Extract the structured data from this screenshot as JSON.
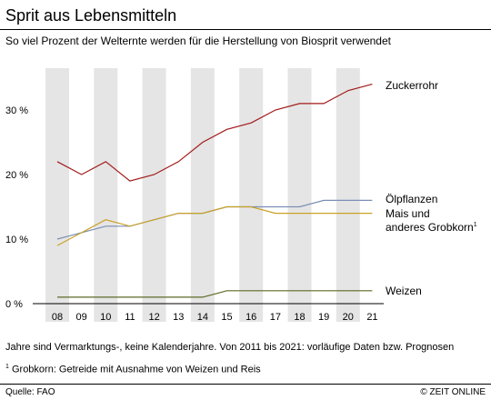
{
  "header": {
    "title": "Sprit aus Lebensmitteln",
    "subtitle": "So viel Prozent der Welternte werden für die Herstellung von Biosprit verwendet"
  },
  "notes": {
    "line1": "Jahre sind Vermarktungs-, keine Kalenderjahre. Von 2011 bis 2021: vorläufige Daten bzw. Prognosen",
    "marker": "1",
    "line2": "Grobkorn: Getreide mit Ausnahme von Weizen und Reis"
  },
  "footer": {
    "source": "Quelle: FAO",
    "credit": "© ZEIT ONLINE"
  },
  "chart_data": {
    "type": "line",
    "categories": [
      "08",
      "09",
      "10",
      "11",
      "12",
      "13",
      "14",
      "15",
      "16",
      "17",
      "18",
      "19",
      "20",
      "21"
    ],
    "ylim": [
      0,
      37
    ],
    "yticks": [
      {
        "value": 0,
        "label": "0 %"
      },
      {
        "value": 10,
        "label": "10 %"
      },
      {
        "value": 20,
        "label": "20 %"
      },
      {
        "value": 30,
        "label": "30 %"
      }
    ],
    "grid": "alternating vertical bands",
    "legend": "direct labels at right",
    "series": [
      {
        "name": "Zuckerrohr",
        "label_lines": [
          "Zuckerrohr"
        ],
        "color": "#a31a1a",
        "values": [
          22,
          20,
          22,
          19,
          20,
          22,
          25,
          27,
          28,
          30,
          31,
          31,
          33,
          34
        ]
      },
      {
        "name": "Ölpflanzen",
        "label_lines": [
          "Ölpflanzen"
        ],
        "color": "#7b8fb5",
        "values": [
          10,
          11,
          12,
          12,
          13,
          14,
          14,
          15,
          15,
          15,
          15,
          16,
          16,
          16
        ]
      },
      {
        "name": "Mais und anderes Grobkorn",
        "label_lines": [
          "Mais und",
          "anderes Grobkorn"
        ],
        "marker": "1",
        "color": "#c9a227",
        "values": [
          9,
          11,
          13,
          12,
          13,
          14,
          14,
          15,
          15,
          14,
          14,
          14,
          14,
          14
        ]
      },
      {
        "name": "Weizen",
        "label_lines": [
          "Weizen"
        ],
        "color": "#5c6b26",
        "values": [
          1,
          1,
          1,
          1,
          1,
          1,
          1,
          2,
          2,
          2,
          2,
          2,
          2,
          2
        ]
      }
    ]
  }
}
